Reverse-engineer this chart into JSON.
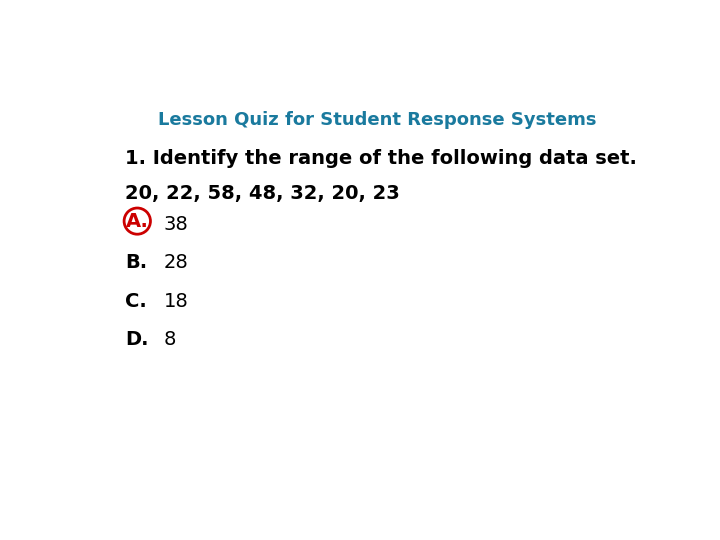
{
  "title": "Lesson Quiz for Student Response Systems",
  "title_color": "#1a7a9e",
  "title_fontsize": 13,
  "background_color": "#ffffff",
  "question": "1. Identify the range of the following data set.",
  "data_line": "20, 22, 58, 48, 32, 20, 23",
  "options": [
    {
      "label": "A.",
      "text": "38",
      "circled": true
    },
    {
      "label": "B.",
      "text": "28",
      "circled": false
    },
    {
      "label": "C.",
      "text": "18",
      "circled": false
    },
    {
      "label": "D.",
      "text": "8",
      "circled": false
    }
  ],
  "text_color": "#000000",
  "circle_color": "#cc0000",
  "label_fontsize": 14,
  "question_fontsize": 14,
  "data_fontsize": 14,
  "option_fontsize": 14,
  "number_fontsize": 14
}
